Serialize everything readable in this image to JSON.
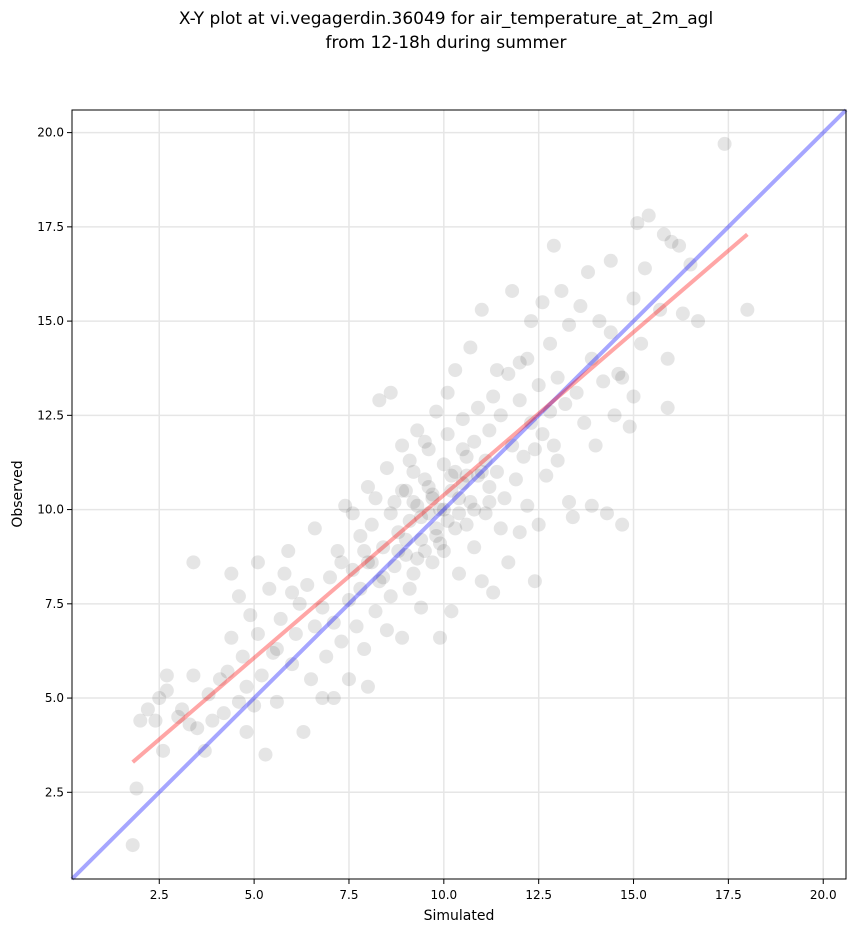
{
  "chart_data": {
    "type": "scatter",
    "title": "X-Y plot at vi.vegagerdin.36049 for air_temperature_at_2m_agl",
    "subtitle": "from 12-18h during summer",
    "xlabel": "Simulated",
    "ylabel": "Observed",
    "xlim": [
      0.2,
      20.6
    ],
    "ylim": [
      0.2,
      20.6
    ],
    "xticks": [
      2.5,
      5.0,
      7.5,
      10.0,
      12.5,
      15.0,
      17.5,
      20.0
    ],
    "yticks": [
      2.5,
      5.0,
      7.5,
      10.0,
      12.5,
      15.0,
      17.5,
      20.0
    ],
    "xtick_labels": [
      "2.5",
      "5.0",
      "7.5",
      "10.0",
      "12.5",
      "15.0",
      "17.5",
      "20.0"
    ],
    "ytick_labels": [
      "2.5",
      "5.0",
      "7.5",
      "10.0",
      "12.5",
      "15.0",
      "17.5",
      "20.0"
    ],
    "grid": true,
    "colors": {
      "points": "#000000",
      "identity_line": "#0000ff",
      "fit_line": "#ff0000",
      "grid": "#e6e6e6"
    },
    "identity_line": {
      "x": [
        0.2,
        20.6
      ],
      "y": [
        0.2,
        20.6
      ]
    },
    "fit_line": {
      "x": [
        1.8,
        18.0
      ],
      "y": [
        3.3,
        17.3
      ]
    },
    "points": [
      [
        1.8,
        1.1
      ],
      [
        1.9,
        2.6
      ],
      [
        2.0,
        4.4
      ],
      [
        2.2,
        4.7
      ],
      [
        2.4,
        4.4
      ],
      [
        2.6,
        3.6
      ],
      [
        2.5,
        5.0
      ],
      [
        2.7,
        5.2
      ],
      [
        2.7,
        5.6
      ],
      [
        3.0,
        4.5
      ],
      [
        3.1,
        4.7
      ],
      [
        3.3,
        4.3
      ],
      [
        3.4,
        5.6
      ],
      [
        3.4,
        8.6
      ],
      [
        3.5,
        4.2
      ],
      [
        3.7,
        3.6
      ],
      [
        3.8,
        5.1
      ],
      [
        3.9,
        4.4
      ],
      [
        4.1,
        5.5
      ],
      [
        4.2,
        4.6
      ],
      [
        4.3,
        5.7
      ],
      [
        4.4,
        6.6
      ],
      [
        4.4,
        8.3
      ],
      [
        4.6,
        4.9
      ],
      [
        4.6,
        7.7
      ],
      [
        4.7,
        6.1
      ],
      [
        4.8,
        5.3
      ],
      [
        4.8,
        4.1
      ],
      [
        4.9,
        7.2
      ],
      [
        5.0,
        4.8
      ],
      [
        5.1,
        6.7
      ],
      [
        5.1,
        8.6
      ],
      [
        5.2,
        5.6
      ],
      [
        5.3,
        3.5
      ],
      [
        5.4,
        7.9
      ],
      [
        5.5,
        6.2
      ],
      [
        5.6,
        4.9
      ],
      [
        5.7,
        7.1
      ],
      [
        5.8,
        8.3
      ],
      [
        5.9,
        8.9
      ],
      [
        6.0,
        5.9
      ],
      [
        6.1,
        6.7
      ],
      [
        6.2,
        7.5
      ],
      [
        6.3,
        4.1
      ],
      [
        6.4,
        8.0
      ],
      [
        6.5,
        5.5
      ],
      [
        6.6,
        6.9
      ],
      [
        6.6,
        9.5
      ],
      [
        6.8,
        7.4
      ],
      [
        6.9,
        6.1
      ],
      [
        7.0,
        8.2
      ],
      [
        7.1,
        5.0
      ],
      [
        7.1,
        7.0
      ],
      [
        7.2,
        8.9
      ],
      [
        7.3,
        6.5
      ],
      [
        7.4,
        10.1
      ],
      [
        7.5,
        7.6
      ],
      [
        7.5,
        5.5
      ],
      [
        7.6,
        8.4
      ],
      [
        7.7,
        6.9
      ],
      [
        7.8,
        9.3
      ],
      [
        7.8,
        7.9
      ],
      [
        7.9,
        6.3
      ],
      [
        8.0,
        8.6
      ],
      [
        8.0,
        5.3
      ],
      [
        8.0,
        10.6
      ],
      [
        8.1,
        9.6
      ],
      [
        8.2,
        7.3
      ],
      [
        8.3,
        8.1
      ],
      [
        8.3,
        12.9
      ],
      [
        8.4,
        9.0
      ],
      [
        8.5,
        6.8
      ],
      [
        8.5,
        11.1
      ],
      [
        8.6,
        7.7
      ],
      [
        8.6,
        13.1
      ],
      [
        8.7,
        8.5
      ],
      [
        8.7,
        10.2
      ],
      [
        8.8,
        9.4
      ],
      [
        8.9,
        6.6
      ],
      [
        8.9,
        11.7
      ],
      [
        9.0,
        8.8
      ],
      [
        9.0,
        10.5
      ],
      [
        9.1,
        7.9
      ],
      [
        9.1,
        9.7
      ],
      [
        9.2,
        11.0
      ],
      [
        9.2,
        8.3
      ],
      [
        9.3,
        10.1
      ],
      [
        9.3,
        12.1
      ],
      [
        9.4,
        9.2
      ],
      [
        9.4,
        7.4
      ],
      [
        9.5,
        10.8
      ],
      [
        9.5,
        8.9
      ],
      [
        9.6,
        9.9
      ],
      [
        9.6,
        11.6
      ],
      [
        9.7,
        10.4
      ],
      [
        9.7,
        8.6
      ],
      [
        9.8,
        9.5
      ],
      [
        9.8,
        12.6
      ],
      [
        9.9,
        10.0
      ],
      [
        9.9,
        6.6
      ],
      [
        10.0,
        11.2
      ],
      [
        10.0,
        8.9
      ],
      [
        10.1,
        9.7
      ],
      [
        10.1,
        12.0
      ],
      [
        10.2,
        10.5
      ],
      [
        10.2,
        7.3
      ],
      [
        10.3,
        11.0
      ],
      [
        10.3,
        13.7
      ],
      [
        10.4,
        9.9
      ],
      [
        10.4,
        8.3
      ],
      [
        10.5,
        10.7
      ],
      [
        10.5,
        12.4
      ],
      [
        10.6,
        9.6
      ],
      [
        10.6,
        11.4
      ],
      [
        10.7,
        10.2
      ],
      [
        10.7,
        14.3
      ],
      [
        10.8,
        11.8
      ],
      [
        10.8,
        9.0
      ],
      [
        10.9,
        10.9
      ],
      [
        10.9,
        12.7
      ],
      [
        11.0,
        15.3
      ],
      [
        11.0,
        8.1
      ],
      [
        11.1,
        11.3
      ],
      [
        11.1,
        9.9
      ],
      [
        11.2,
        12.1
      ],
      [
        11.2,
        10.6
      ],
      [
        11.3,
        7.8
      ],
      [
        11.3,
        13.0
      ],
      [
        11.4,
        11.0
      ],
      [
        11.5,
        9.5
      ],
      [
        11.5,
        12.5
      ],
      [
        11.6,
        10.3
      ],
      [
        11.7,
        13.6
      ],
      [
        11.7,
        8.6
      ],
      [
        11.8,
        11.7
      ],
      [
        11.8,
        15.8
      ],
      [
        11.9,
        10.8
      ],
      [
        12.0,
        12.9
      ],
      [
        12.0,
        9.4
      ],
      [
        12.1,
        11.4
      ],
      [
        12.2,
        14.0
      ],
      [
        12.2,
        10.1
      ],
      [
        12.3,
        12.3
      ],
      [
        12.3,
        15.0
      ],
      [
        12.4,
        8.1
      ],
      [
        12.4,
        11.6
      ],
      [
        12.5,
        13.3
      ],
      [
        12.5,
        9.6
      ],
      [
        12.6,
        12.0
      ],
      [
        12.6,
        15.5
      ],
      [
        12.7,
        10.9
      ],
      [
        12.8,
        14.4
      ],
      [
        12.8,
        12.6
      ],
      [
        12.9,
        17.0
      ],
      [
        13.0,
        13.5
      ],
      [
        13.0,
        11.3
      ],
      [
        13.1,
        15.8
      ],
      [
        13.2,
        12.8
      ],
      [
        13.3,
        10.2
      ],
      [
        13.3,
        14.9
      ],
      [
        13.4,
        9.8
      ],
      [
        13.5,
        13.1
      ],
      [
        13.6,
        15.4
      ],
      [
        13.7,
        12.3
      ],
      [
        13.8,
        16.3
      ],
      [
        13.9,
        14.0
      ],
      [
        14.0,
        11.7
      ],
      [
        14.1,
        15.0
      ],
      [
        14.2,
        13.4
      ],
      [
        14.3,
        9.9
      ],
      [
        14.4,
        14.7
      ],
      [
        14.4,
        16.6
      ],
      [
        14.5,
        12.5
      ],
      [
        14.7,
        13.5
      ],
      [
        14.7,
        9.6
      ],
      [
        15.0,
        15.6
      ],
      [
        15.1,
        17.6
      ],
      [
        15.2,
        14.4
      ],
      [
        15.3,
        16.4
      ],
      [
        15.4,
        17.8
      ],
      [
        15.7,
        15.3
      ],
      [
        15.8,
        17.3
      ],
      [
        15.9,
        14.0
      ],
      [
        16.0,
        17.1
      ],
      [
        16.2,
        17.0
      ],
      [
        16.3,
        15.2
      ],
      [
        16.5,
        16.5
      ],
      [
        16.7,
        15.0
      ],
      [
        17.4,
        19.7
      ],
      [
        18.0,
        15.3
      ],
      [
        15.0,
        13.0
      ],
      [
        15.9,
        12.7
      ],
      [
        14.9,
        12.2
      ],
      [
        14.6,
        13.6
      ],
      [
        13.9,
        10.1
      ],
      [
        12.9,
        11.7
      ],
      [
        6.8,
        5.0
      ],
      [
        5.6,
        6.3
      ],
      [
        6.0,
        7.8
      ],
      [
        7.6,
        9.9
      ],
      [
        8.2,
        10.3
      ],
      [
        9.5,
        11.8
      ],
      [
        10.1,
        13.1
      ],
      [
        11.4,
        13.7
      ],
      [
        12.0,
        13.9
      ],
      [
        7.3,
        8.6
      ],
      [
        8.4,
        8.2
      ],
      [
        9.0,
        9.2
      ],
      [
        9.2,
        10.2
      ],
      [
        9.4,
        9.8
      ],
      [
        9.6,
        10.6
      ],
      [
        9.8,
        9.3
      ],
      [
        10.0,
        10.0
      ],
      [
        10.2,
        10.9
      ],
      [
        10.4,
        10.3
      ],
      [
        10.6,
        10.9
      ],
      [
        9.3,
        8.7
      ],
      [
        8.8,
        8.9
      ],
      [
        9.7,
        10.3
      ],
      [
        9.9,
        9.1
      ],
      [
        10.3,
        9.5
      ],
      [
        10.5,
        11.6
      ],
      [
        8.6,
        9.9
      ],
      [
        8.9,
        10.5
      ],
      [
        9.1,
        11.3
      ],
      [
        11.0,
        11.0
      ],
      [
        11.2,
        10.2
      ],
      [
        10.8,
        10.0
      ],
      [
        8.1,
        8.6
      ],
      [
        7.9,
        8.9
      ]
    ]
  }
}
